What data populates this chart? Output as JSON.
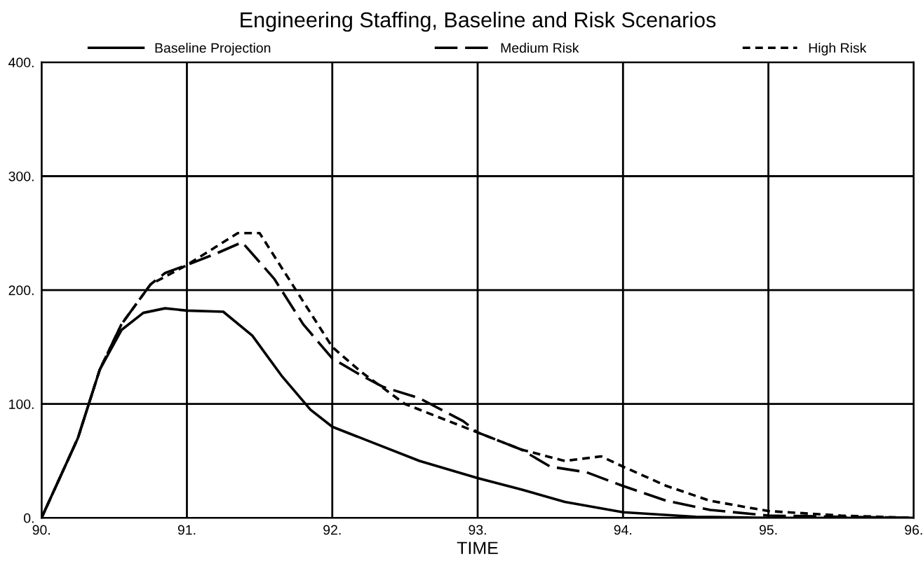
{
  "chart_data": {
    "type": "line",
    "title": "Engineering Staffing, Baseline and Risk Scenarios",
    "xlabel": "TIME",
    "xlim": [
      90,
      96
    ],
    "xticks": [
      {
        "value": 90,
        "label": "90."
      },
      {
        "value": 91,
        "label": "91."
      },
      {
        "value": 92,
        "label": "92."
      },
      {
        "value": 93,
        "label": "93."
      },
      {
        "value": 94,
        "label": "94."
      },
      {
        "value": 95,
        "label": "95."
      },
      {
        "value": 96,
        "label": "96."
      }
    ],
    "ylim": [
      0,
      400
    ],
    "yticks": [
      {
        "value": 0,
        "label": "0."
      },
      {
        "value": 100,
        "label": "100."
      },
      {
        "value": 200,
        "label": "200."
      },
      {
        "value": 300,
        "label": "300."
      },
      {
        "value": 400,
        "label": "400."
      }
    ],
    "grid": true,
    "legend": "top",
    "marker": "none",
    "series": [
      {
        "name": "Baseline Projection",
        "color": "#000000",
        "line_style": "solid",
        "x": [
          90,
          90.25,
          90.4,
          90.55,
          90.7,
          90.85,
          91,
          91.25,
          91.45,
          91.65,
          91.85,
          92,
          92.3,
          92.6,
          93,
          93.3,
          93.6,
          94,
          94.5,
          95,
          96
        ],
        "values": [
          0,
          70,
          130,
          165,
          180,
          184,
          182,
          181,
          160,
          125,
          95,
          80,
          65,
          50,
          35,
          25,
          14,
          5,
          1,
          0,
          0
        ]
      },
      {
        "name": "Medium Risk",
        "color": "#000000",
        "line_style": "dashed",
        "x": [
          90,
          90.25,
          90.4,
          90.55,
          90.75,
          90.85,
          91,
          91.2,
          91.38,
          91.6,
          91.8,
          92,
          92.2,
          92.35,
          92.6,
          92.9,
          93,
          93.3,
          93.5,
          93.75,
          94,
          94.3,
          94.6,
          95,
          95.5,
          96
        ],
        "values": [
          0,
          70,
          130,
          170,
          205,
          215,
          222,
          232,
          242,
          210,
          170,
          140,
          125,
          115,
          105,
          85,
          75,
          60,
          45,
          40,
          28,
          15,
          7,
          2,
          1,
          0
        ]
      },
      {
        "name": "High Risk",
        "color": "#000000",
        "line_style": "dotted",
        "x": [
          90,
          90.25,
          90.4,
          90.55,
          90.75,
          91,
          91.2,
          91.35,
          91.5,
          91.7,
          91.9,
          92,
          92.2,
          92.5,
          92.8,
          93,
          93.3,
          93.6,
          93.85,
          94,
          94.3,
          94.6,
          95,
          95.5,
          96
        ],
        "values": [
          0,
          70,
          130,
          170,
          205,
          222,
          238,
          250,
          250,
          210,
          170,
          150,
          128,
          100,
          85,
          75,
          60,
          50,
          54,
          45,
          28,
          15,
          6,
          2,
          0
        ]
      }
    ]
  }
}
